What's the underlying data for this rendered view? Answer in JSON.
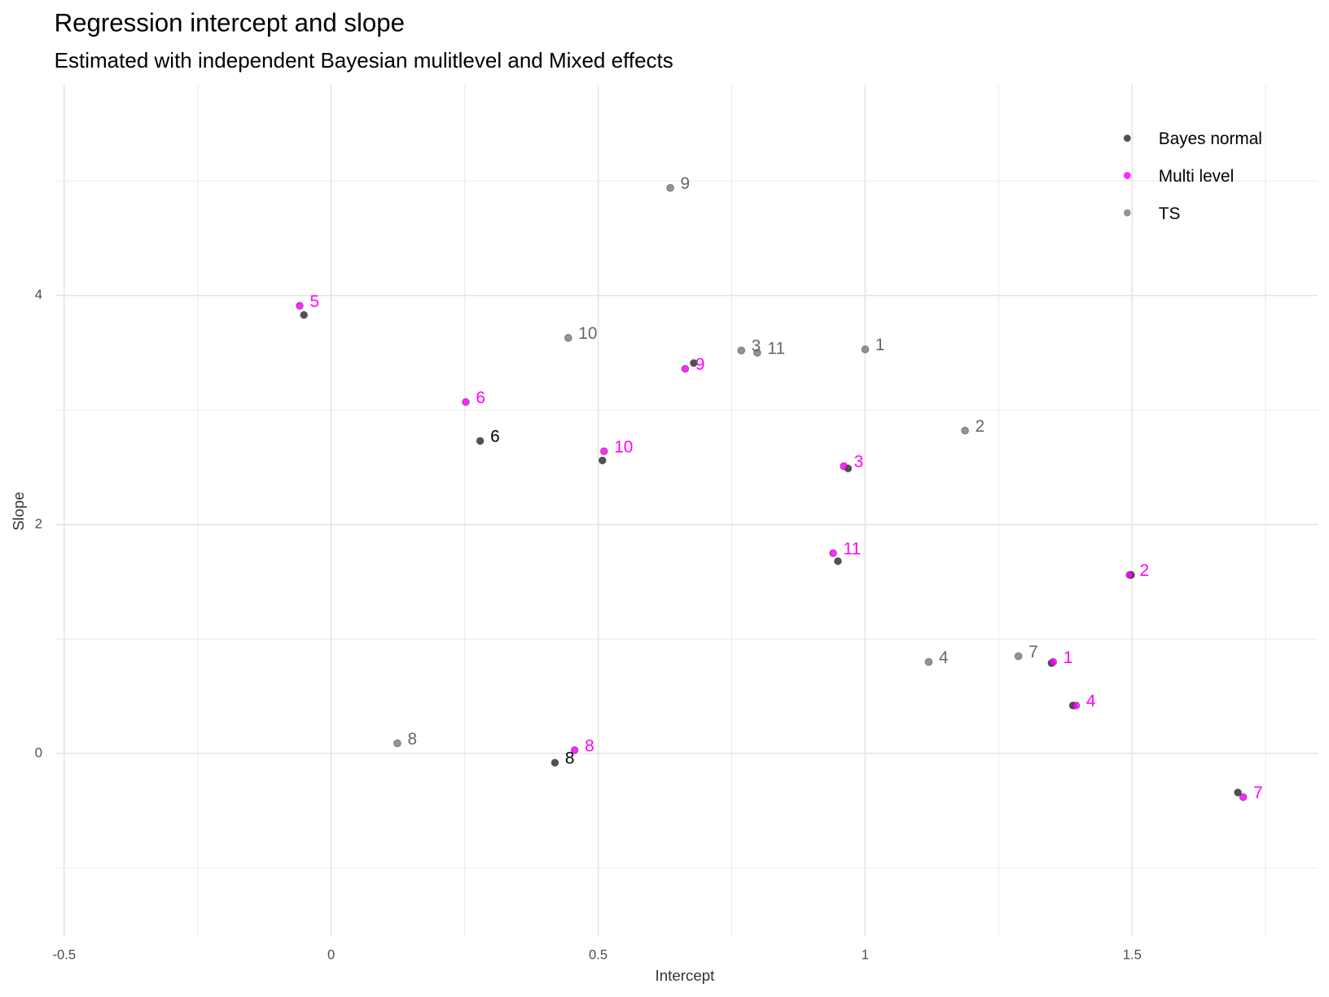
{
  "chart_data": {
    "type": "scatter",
    "title": "Regression intercept and slope",
    "subtitle": "Estimated with independent Bayesian mulitlevel and Mixed effects",
    "x_label": "Intercept",
    "y_label": "Slope",
    "xlim": [
      -0.517,
      1.848
    ],
    "ylim": [
      -1.6,
      5.84
    ],
    "xticks": [
      -0.5,
      0.0,
      0.5,
      1.0,
      1.5
    ],
    "yticks": [
      0,
      2,
      4
    ],
    "x_minor_grid": [
      -0.25,
      0.25,
      0.75,
      1.25,
      1.75
    ],
    "y_minor_grid": [
      -1,
      1,
      3,
      5
    ],
    "grid": true,
    "legend": "top-right",
    "series": [
      {
        "name": "Bayes normal",
        "color": "#333333",
        "label_color": "#000000",
        "x": [
          -0.051,
          0.679,
          0.279,
          0.508,
          0.968,
          0.949,
          1.498,
          1.349,
          1.389,
          0.419,
          1.698
        ],
        "values": [
          3.83,
          3.41,
          2.73,
          2.56,
          2.49,
          1.68,
          1.56,
          0.79,
          0.42,
          -0.08,
          -0.34
        ],
        "labels": [
          null,
          null,
          "6",
          null,
          null,
          null,
          null,
          null,
          null,
          "8",
          null
        ]
      },
      {
        "name": "Multi level",
        "color": "#ff00ff",
        "label_color": "#ff00ff",
        "x": [
          -0.059,
          0.663,
          0.252,
          0.511,
          0.96,
          0.94,
          1.495,
          1.352,
          1.395,
          0.456,
          1.708
        ],
        "values": [
          3.91,
          3.36,
          3.07,
          2.64,
          2.51,
          1.75,
          1.56,
          0.8,
          0.42,
          0.03,
          -0.38
        ],
        "labels": [
          "5",
          "9",
          "6",
          "10",
          "3",
          "11",
          "2",
          "1",
          "4",
          "8",
          "7"
        ]
      },
      {
        "name": "TS",
        "color": "#808080",
        "label_color": "#666666",
        "x": [
          0.635,
          0.444,
          0.768,
          0.798,
          1.0,
          1.187,
          1.119,
          1.287,
          0.124
        ],
        "values": [
          4.94,
          3.63,
          3.52,
          3.5,
          3.53,
          2.82,
          0.8,
          0.85,
          0.09
        ],
        "labels": [
          "9",
          "10",
          "3",
          "11",
          "1",
          "2",
          "4",
          "7",
          "8"
        ]
      }
    ]
  }
}
